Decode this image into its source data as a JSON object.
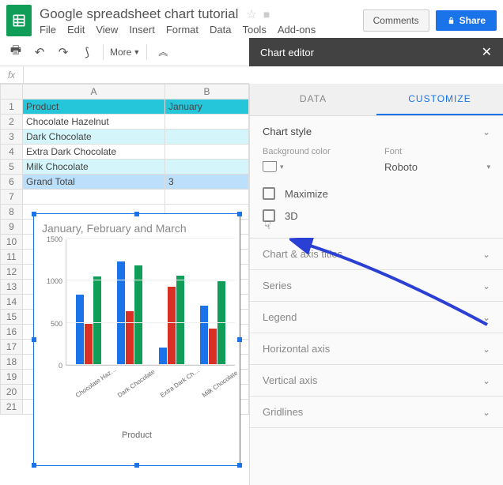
{
  "doc_title": "Google spreadsheet chart tutorial",
  "menus": [
    "File",
    "Edit",
    "View",
    "Insert",
    "Format",
    "Data",
    "Tools",
    "Add-ons"
  ],
  "buttons": {
    "comments": "Comments",
    "share": "Share",
    "more": "More"
  },
  "panel": {
    "title": "Chart editor",
    "tabs": {
      "data": "DATA",
      "customize": "CUSTOMIZE"
    },
    "chart_style": "Chart style",
    "bg_label": "Background color",
    "font_label": "Font",
    "font_value": "Roboto",
    "maximize": "Maximize",
    "three_d": "3D",
    "sections": [
      "Chart & axis titles",
      "Series",
      "Legend",
      "Horizontal axis",
      "Vertical axis",
      "Gridlines"
    ]
  },
  "sheet": {
    "col_headers": [
      "A",
      "B"
    ],
    "rows": [
      {
        "a": "Product",
        "b": "January",
        "bg_a": "#26c6da",
        "bg_b": "#26c6da"
      },
      {
        "a": "Chocolate Hazelnut",
        "b": "",
        "bg_a": "#ffffff",
        "bg_b": "#ffffff"
      },
      {
        "a": "Dark Chocolate",
        "b": "",
        "bg_a": "#d4f5f9",
        "bg_b": "#d4f5f9"
      },
      {
        "a": "Extra Dark Chocolate",
        "b": "",
        "bg_a": "#ffffff",
        "bg_b": "#ffffff"
      },
      {
        "a": "Milk Chocolate",
        "b": "",
        "bg_a": "#d4f5f9",
        "bg_b": "#d4f5f9"
      },
      {
        "a": "Grand Total",
        "b": "3",
        "bg_a": "#bcdffb",
        "bg_b": "#bcdffb"
      }
    ],
    "empty_rows": 15
  },
  "chart": {
    "title": "January, February and March",
    "x_title": "Product",
    "y_max": 1500,
    "y_ticks": [
      0,
      500,
      1000,
      1500
    ],
    "categories": [
      "Chocolate Haz…",
      "Dark Chocolate",
      "Extra Dark Ch…",
      "Milk Chocolate"
    ],
    "series_colors": [
      "#1a73e8",
      "#d93025",
      "#0f9d58"
    ],
    "data": [
      [
        830,
        490,
        1050
      ],
      [
        1230,
        640,
        1180
      ],
      [
        210,
        930,
        1060
      ],
      [
        700,
        430,
        990
      ]
    ]
  },
  "fx": "fx"
}
